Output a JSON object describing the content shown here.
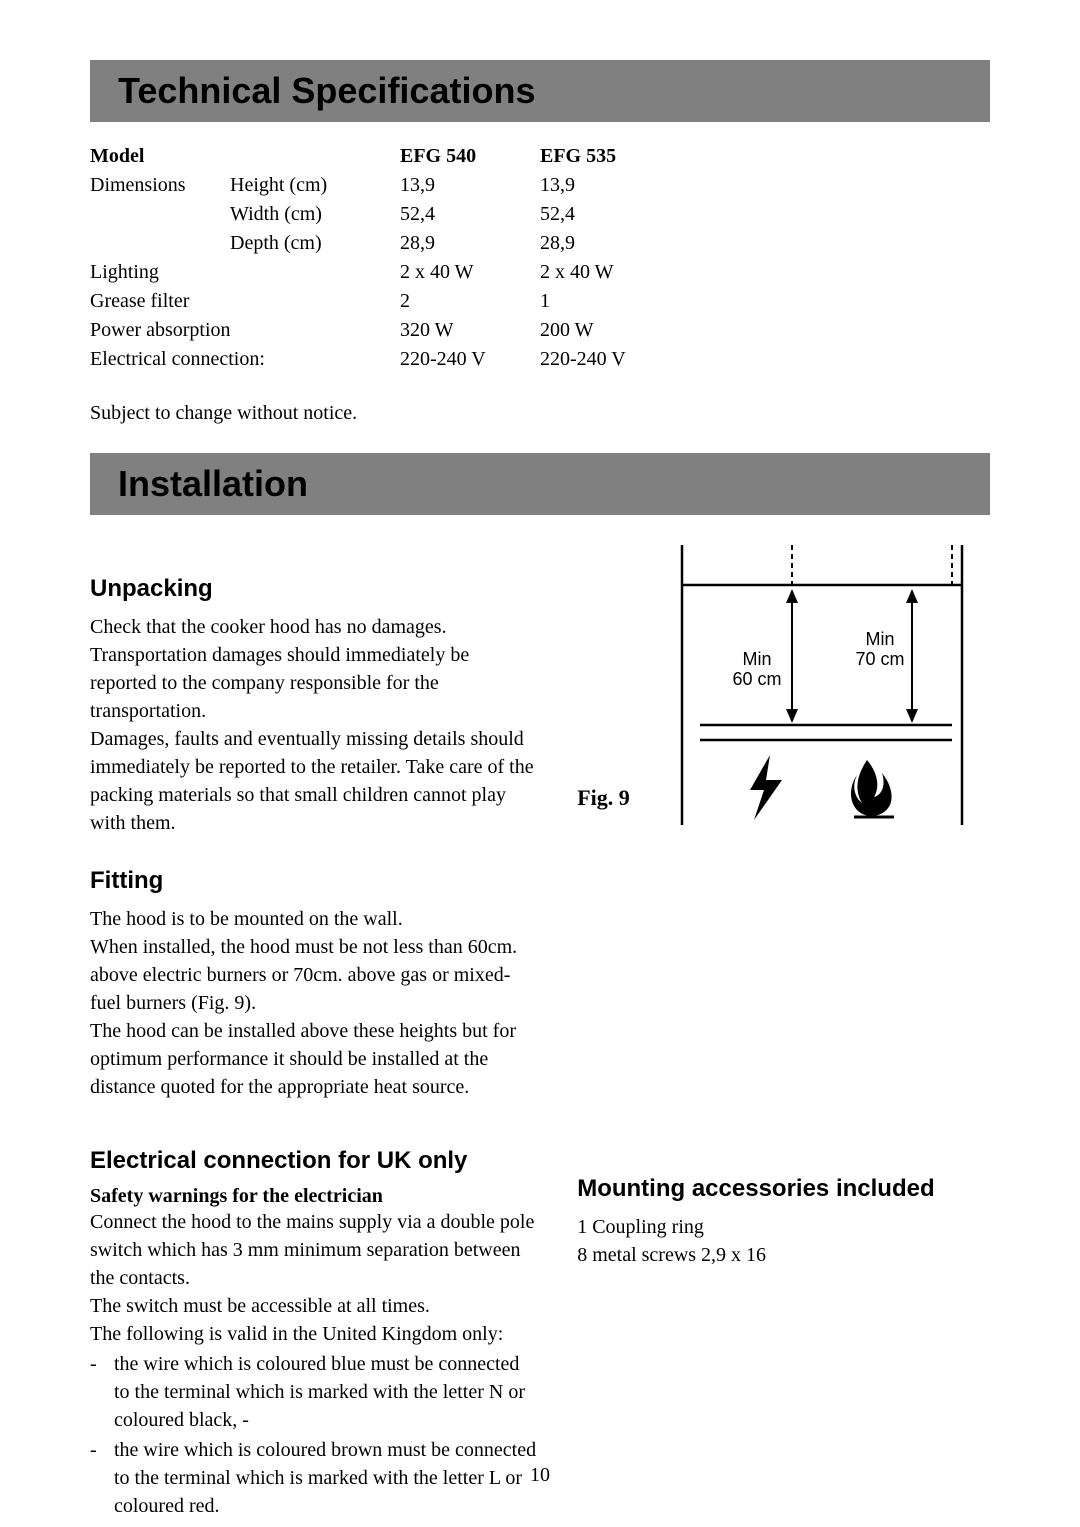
{
  "banners": {
    "tech_spec": "Technical Specifications",
    "installation": "Installation"
  },
  "spec_table": {
    "header": {
      "label": "Model",
      "col1": "EFG 540",
      "col2": "EFG 535"
    },
    "rows": [
      {
        "label": "Dimensions",
        "sublabel": "Height (cm)",
        "v1": "13,9",
        "v2": "13,9"
      },
      {
        "label": "",
        "sublabel": "Width (cm)",
        "v1": "52,4",
        "v2": "52,4"
      },
      {
        "label": "",
        "sublabel": "Depth (cm)",
        "v1": "28,9",
        "v2": "28,9"
      },
      {
        "label": "Lighting",
        "sublabel": "",
        "v1": "2 x 40 W",
        "v2": "2 x 40 W"
      },
      {
        "label": "Grease filter",
        "sublabel": "",
        "v1": "2",
        "v2": "1"
      },
      {
        "label": "Power absorption",
        "sublabel": "",
        "v1": "320 W",
        "v2": "200 W"
      },
      {
        "label": "Electrical connection:",
        "sublabel": "",
        "v1": "220-240 V",
        "v2": "220-240 V"
      }
    ]
  },
  "notice": "Subject to change without notice.",
  "unpacking": {
    "heading": "Unpacking",
    "text": "Check that the cooker hood has no damages. Transportation damages should immediately be reported to the company responsible for the transportation.\nDamages, faults and eventually missing details should immediately be reported to the retailer. Take care of the packing materials so that small children cannot play with them."
  },
  "fitting": {
    "heading": "Fitting",
    "text": "The hood is to be mounted on the wall.\nWhen installed, the hood must be not less than 60cm. above electric burners or 70cm. above gas or mixed-fuel burners (Fig. 9).\nThe hood can be installed above these heights but for optimum performance it should be installed at the distance quoted for the appropriate heat source."
  },
  "electrical": {
    "heading": "Electrical connection for UK only",
    "subheading": "Safety warnings for the electrician",
    "text": "Connect the hood to the mains supply via a double pole switch which has 3 mm minimum separation between the contacts.\nThe switch must be accessible at all times.\nThe following is valid in the United Kingdom only:",
    "bullets": [
      "the wire which is coloured blue must be connected to the terminal which is marked with the letter N or coloured black, -",
      "the wire which is coloured brown must be connected to the terminal which is marked with the letter L or coloured red."
    ]
  },
  "figure": {
    "caption": "Fig. 9",
    "min_60": "Min\n60 cm",
    "min_70": "Min\n70 cm",
    "line_color": "#000000",
    "fill_color": "#ffffff"
  },
  "mounting": {
    "heading": "Mounting accessories included",
    "items": [
      "1 Coupling ring",
      "8 metal screws 2,9 x 16"
    ]
  },
  "page_number": "10"
}
